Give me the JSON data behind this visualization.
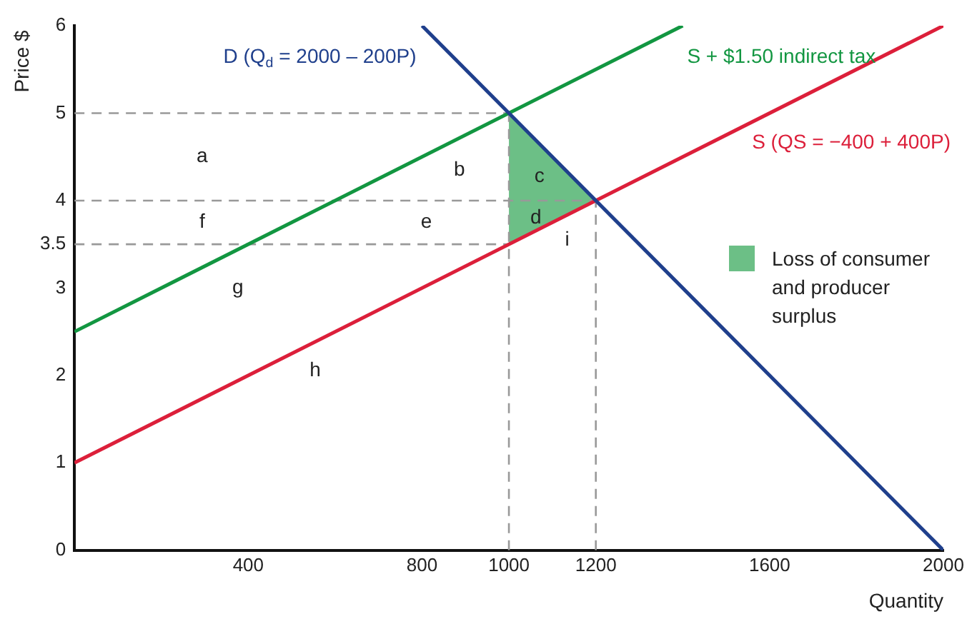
{
  "chart_data": {
    "type": "line",
    "xlabel": "Quantity",
    "ylabel": "Price $",
    "xlim": [
      0,
      2000
    ],
    "ylim": [
      0,
      6
    ],
    "xticks": [
      400,
      800,
      1000,
      1200,
      1600,
      2000
    ],
    "yticks": [
      0,
      1,
      2,
      3,
      3.5,
      4,
      5,
      6
    ],
    "grid": false,
    "marker": "none",
    "legend": "right",
    "series": [
      {
        "name": "D (Q$_{d}$ = 2000 – 200P)",
        "color": "#1f3f8c",
        "x": [
          800,
          2000
        ],
        "values": [
          6,
          0
        ]
      },
      {
        "name": "S + $1.50 indirect tax",
        "color": "#129641",
        "x": [
          0,
          1400
        ],
        "values": [
          2.5,
          6
        ]
      },
      {
        "name": "S (QS = −400 + 400P)",
        "color": "#dc1f3a",
        "x": [
          0,
          2000
        ],
        "values": [
          1,
          6
        ]
      },
      {
        "name": "Loss of consumer and producer surplus",
        "type": "area",
        "color": "#6cbf86",
        "x": [
          1000,
          1200,
          1000
        ],
        "values": [
          5,
          4,
          3.5
        ]
      },
      {
        "color": "#999999",
        "line_style": "dashed",
        "x": [
          0,
          1000
        ],
        "values": [
          5,
          5
        ]
      },
      {
        "color": "#999999",
        "line_style": "dashed",
        "x": [
          0,
          1200
        ],
        "values": [
          4,
          4
        ]
      },
      {
        "color": "#999999",
        "line_style": "dashed",
        "x": [
          0,
          1000
        ],
        "values": [
          3.5,
          3.5
        ]
      },
      {
        "color": "#999999",
        "line_style": "dashed",
        "x": [
          1000,
          1000
        ],
        "values": [
          0,
          5
        ]
      },
      {
        "color": "#999999",
        "line_style": "dashed",
        "x": [
          1200,
          1200
        ],
        "values": [
          0,
          4
        ]
      }
    ],
    "annotations": [
      "a",
      "b",
      "c",
      "d",
      "e",
      "f",
      "g",
      "h",
      "i"
    ]
  }
}
